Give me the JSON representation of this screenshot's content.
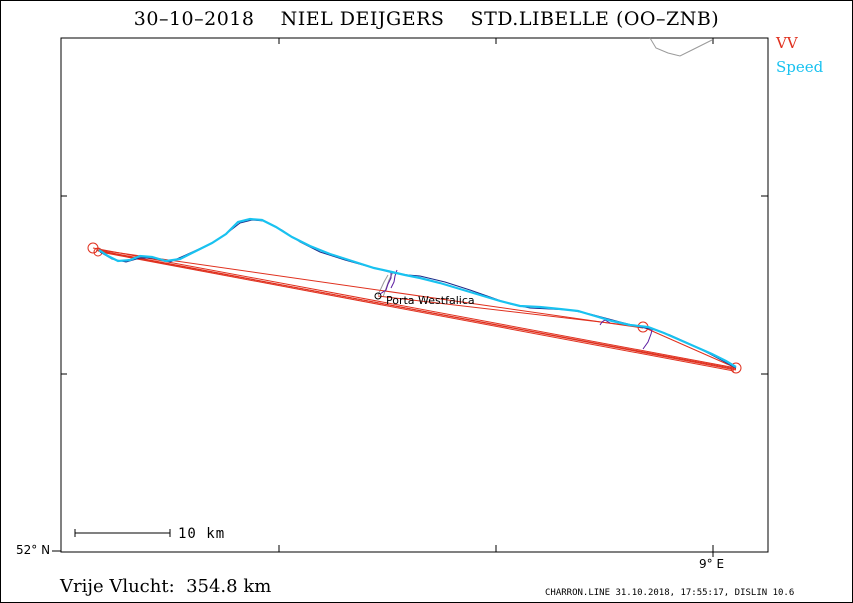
{
  "title": "30–10–2018    NIEL DEIJGERS    STD.LIBELLE (OO–ZNB)",
  "legend": {
    "vv": "VV",
    "speed": "Speed"
  },
  "colors": {
    "vv": "#e0301e",
    "speed": "#19c2f0",
    "track_dark": "#1a2a8a",
    "climb": "#5a1aa0",
    "coast": "#9a9a9a"
  },
  "axes": {
    "lat_label": "52° N",
    "lon_label": "9° E"
  },
  "scale": {
    "label": "10 km"
  },
  "waypoint": {
    "label": "Porta Westfalica"
  },
  "flight": {
    "distance_label": "Vrije Vlucht:  354.8 km"
  },
  "footer": "CHARRON.LINE 31.10.2018, 17:55:17, DISLIN 10.6"
}
